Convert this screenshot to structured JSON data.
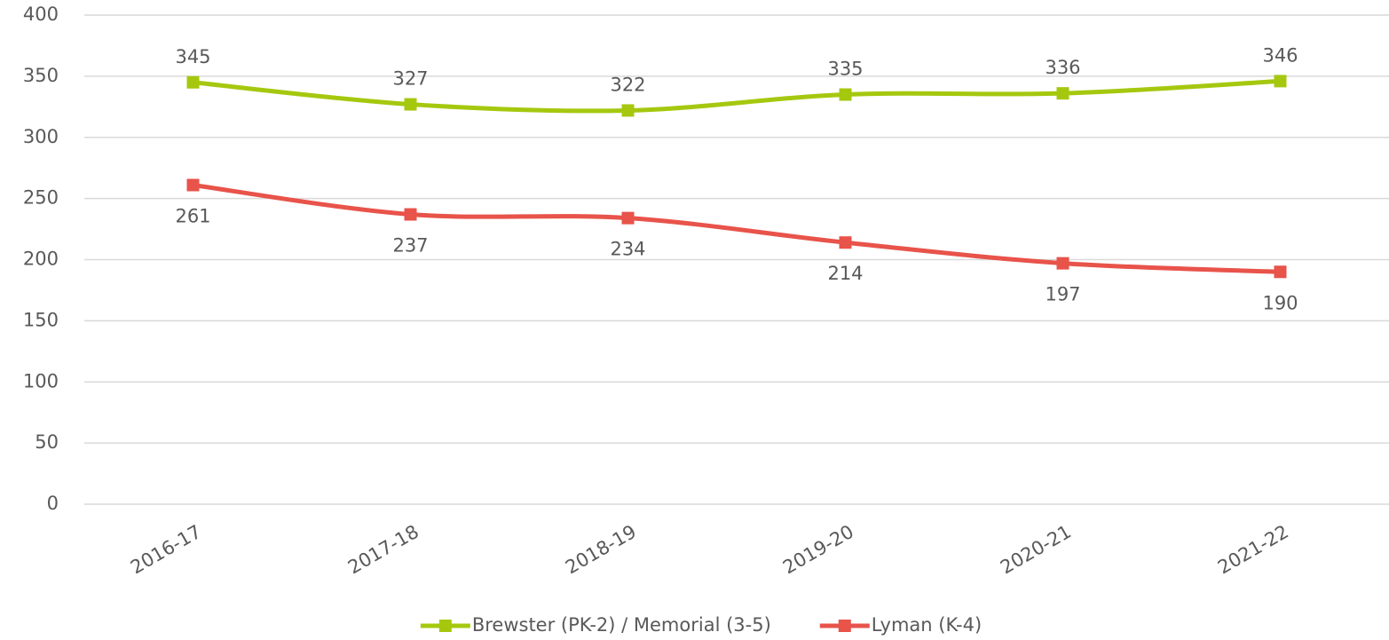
{
  "chart_data": {
    "type": "line",
    "categories": [
      "2016-17",
      "2017-18",
      "2018-19",
      "2019-20",
      "2020-21",
      "2021-22"
    ],
    "series": [
      {
        "name": "Brewster (PK-2) / Memorial (3-5)",
        "color": "#a5c80f",
        "values": [
          345,
          327,
          322,
          335,
          336,
          346
        ]
      },
      {
        "name": "Lyman (K-4)",
        "color": "#e8534a",
        "values": [
          261,
          237,
          234,
          214,
          197,
          190
        ]
      }
    ],
    "ylim": [
      0,
      400
    ],
    "yticks": [
      0,
      50,
      100,
      150,
      200,
      250,
      300,
      350,
      400
    ],
    "grid": true,
    "legend": "bottom",
    "smooth": true,
    "data_labels": true
  }
}
